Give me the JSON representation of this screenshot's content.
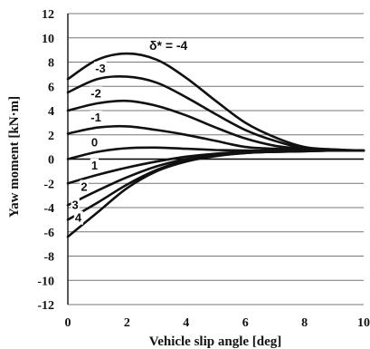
{
  "chart_data": {
    "type": "line",
    "xlabel": "Vehicle slip angle [deg]",
    "ylabel": "Yaw moment [kN·m]",
    "xlim": [
      0,
      10
    ],
    "ylim": [
      -12,
      12
    ],
    "x_ticks": [
      "0",
      "2",
      "4",
      "6",
      "8",
      "10"
    ],
    "y_ticks": [
      "12",
      "10",
      "8",
      "6",
      "4",
      "2",
      "0",
      "-2",
      "-4",
      "-6",
      "-8",
      "-10",
      "-12"
    ],
    "grid": "horizontal",
    "annotation": "δ* = -4",
    "x": [
      0,
      1,
      2,
      3,
      4,
      5,
      6,
      7,
      8,
      9,
      10
    ],
    "series": [
      {
        "name": "-4",
        "values": [
          6.6,
          8.2,
          8.7,
          8.2,
          6.7,
          4.8,
          3.0,
          1.8,
          1.0,
          0.8,
          0.7
        ]
      },
      {
        "name": "-3",
        "values": [
          5.5,
          6.6,
          6.8,
          6.3,
          5.1,
          3.7,
          2.4,
          1.5,
          0.9,
          0.75,
          0.7
        ]
      },
      {
        "name": "-2",
        "values": [
          4.0,
          4.6,
          4.8,
          4.4,
          3.6,
          2.6,
          1.7,
          1.1,
          0.85,
          0.75,
          0.7
        ]
      },
      {
        "name": "-1",
        "values": [
          2.1,
          2.6,
          2.7,
          2.4,
          2.0,
          1.5,
          1.0,
          0.85,
          0.8,
          0.75,
          0.7
        ]
      },
      {
        "name": "0",
        "values": [
          0.0,
          0.6,
          0.9,
          0.95,
          0.85,
          0.75,
          0.7,
          0.7,
          0.7,
          0.7,
          0.7
        ]
      },
      {
        "name": "1",
        "values": [
          -2.0,
          -1.3,
          -0.7,
          -0.2,
          0.2,
          0.45,
          0.6,
          0.65,
          0.7,
          0.7,
          0.7
        ]
      },
      {
        "name": "2",
        "values": [
          -3.8,
          -2.6,
          -1.5,
          -0.6,
          0.0,
          0.35,
          0.55,
          0.6,
          0.65,
          0.7,
          0.7
        ]
      },
      {
        "name": "3",
        "values": [
          -5.0,
          -3.6,
          -2.1,
          -0.9,
          -0.1,
          0.3,
          0.5,
          0.6,
          0.65,
          0.7,
          0.7
        ]
      },
      {
        "name": "4",
        "values": [
          -6.4,
          -4.4,
          -2.4,
          -1.0,
          -0.2,
          0.25,
          0.5,
          0.6,
          0.65,
          0.7,
          0.7
        ]
      }
    ]
  }
}
